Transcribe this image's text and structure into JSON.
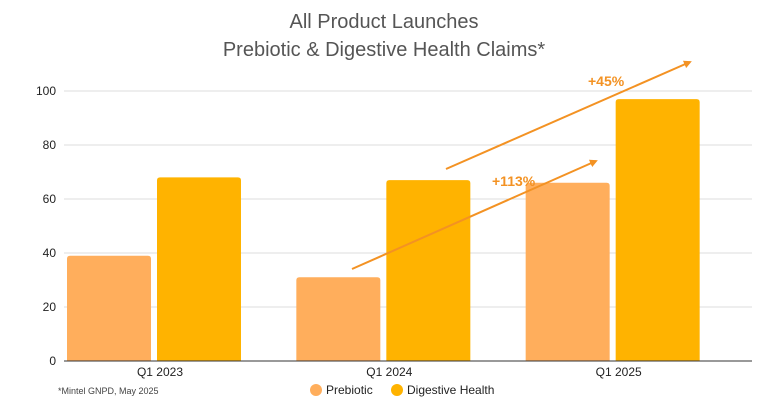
{
  "chart_data": {
    "type": "bar",
    "title": [
      "All Product Launches",
      "Prebiotic & Digestive Health Claims*"
    ],
    "categories": [
      "Q1 2023",
      "Q1 2024",
      "Q1 2025"
    ],
    "series": [
      {
        "name": "Prebiotic",
        "values": [
          39,
          31,
          66
        ],
        "color": "#FFAE5C"
      },
      {
        "name": "Digestive Health",
        "values": [
          68,
          67,
          97
        ],
        "color": "#FFB300"
      }
    ],
    "ylim": [
      0,
      100
    ],
    "yticks": [
      0,
      20,
      40,
      60,
      80,
      100
    ],
    "grid": true,
    "legend": "bottom",
    "annotations": [
      {
        "text": "+113%",
        "series": "Prebiotic",
        "from": "Q1 2024",
        "to": "Q1 2025"
      },
      {
        "text": "+45%",
        "series": "Digestive Health",
        "from": "Q1 2024",
        "to": "Q1 2025"
      }
    ],
    "annotation_color": "#F39223"
  },
  "footnote": "*Mintel GNPD, May 2025"
}
